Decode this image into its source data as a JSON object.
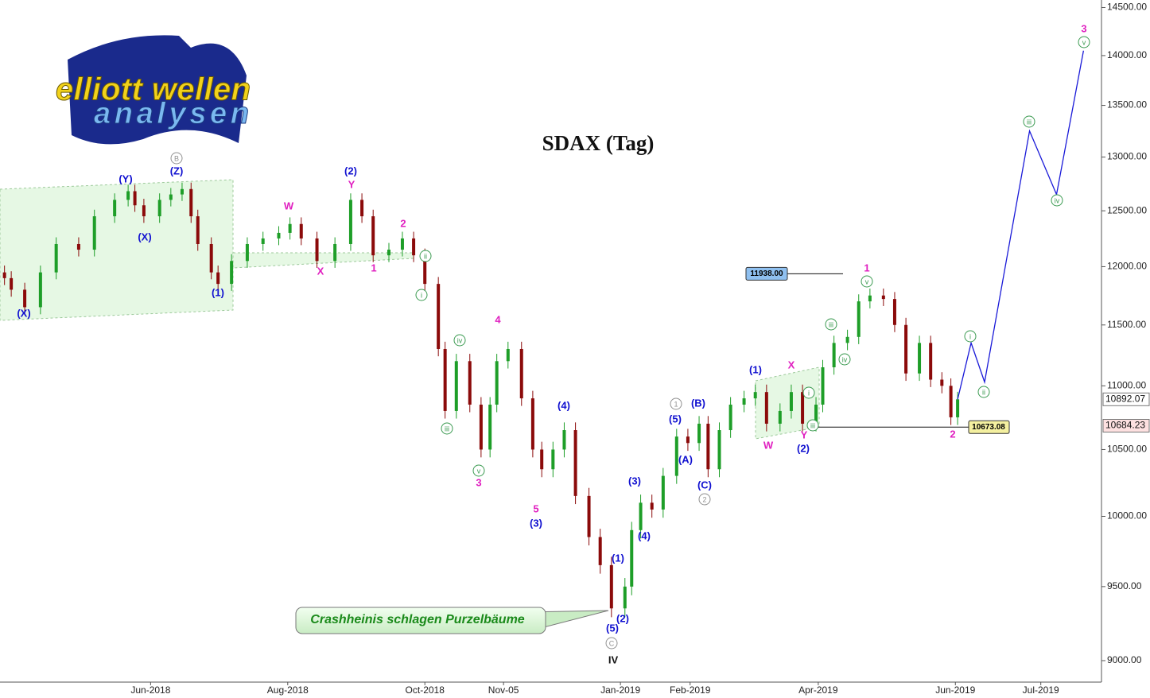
{
  "chart_data": {
    "type": "candlestick",
    "title": "SDAX (Tag)",
    "logo": {
      "line1": "elliott wellen",
      "line2": "analysen"
    },
    "callout": "Crashheinis schlagen Purzelbäume",
    "log_scale": true,
    "up_color": "#1e9e28",
    "down_color": "#8b0a0a",
    "xlim": [
      0,
      490
    ],
    "xticks": [
      {
        "value": 67,
        "label": "Jun-2018"
      },
      {
        "value": 128,
        "label": "Aug-2018"
      },
      {
        "value": 189,
        "label": "Oct-2018"
      },
      {
        "value": 224,
        "label": "Nov-05"
      },
      {
        "value": 276,
        "label": "Jan-2019"
      },
      {
        "value": 307,
        "label": "Feb-2019"
      },
      {
        "value": 364,
        "label": "Apr-2019"
      },
      {
        "value": 425,
        "label": "Jun-2019"
      },
      {
        "value": 463,
        "label": "Jul-2019"
      }
    ],
    "ylim": [
      8860,
      14580
    ],
    "yticks": [
      {
        "value": 9000,
        "label": "9000.00"
      },
      {
        "value": 9500,
        "label": "9500.00"
      },
      {
        "value": 10000,
        "label": "10000.00"
      },
      {
        "value": 10500,
        "label": "10500.00"
      },
      {
        "value": 11000,
        "label": "11000.00"
      },
      {
        "value": 11500,
        "label": "11500.00"
      },
      {
        "value": 12000,
        "label": "12000.00"
      },
      {
        "value": 12500,
        "label": "12500.00"
      },
      {
        "value": 13000,
        "label": "13000.00"
      },
      {
        "value": 13500,
        "label": "13500.00"
      },
      {
        "value": 14000,
        "label": "14000.00"
      },
      {
        "value": 14500,
        "label": "14500.00"
      }
    ],
    "x": [
      2,
      5,
      11,
      18,
      25,
      35,
      42,
      51,
      57,
      60,
      64,
      71,
      76,
      81,
      85,
      88,
      94,
      97,
      103,
      110,
      117,
      124,
      129,
      134,
      141,
      149,
      156,
      161,
      166,
      173,
      179,
      184,
      189,
      195,
      198,
      203,
      209,
      214,
      218,
      221,
      226,
      232,
      237,
      241,
      246,
      251,
      256,
      262,
      267,
      272,
      278,
      281,
      285,
      290,
      295,
      301,
      306,
      311,
      315,
      320,
      325,
      331,
      336,
      341,
      347,
      352,
      357,
      363,
      366,
      371,
      377,
      382,
      387,
      393,
      398,
      403,
      409,
      414,
      419,
      423,
      426
    ],
    "open": [
      11950,
      11900,
      11800,
      11650,
      11950,
      12200,
      12150,
      12450,
      12600,
      12680,
      12550,
      12450,
      12600,
      12650,
      12700,
      12450,
      12200,
      11950,
      11850,
      12050,
      12200,
      12250,
      12300,
      12380,
      12250,
      12050,
      12200,
      12600,
      12450,
      12100,
      12150,
      12250,
      12100,
      11850,
      11300,
      10800,
      11200,
      10850,
      10500,
      10850,
      11200,
      11300,
      10900,
      10500,
      10350,
      10500,
      10650,
      10150,
      9850,
      9650,
      9350,
      9500,
      9900,
      10100,
      10050,
      10300,
      10600,
      10550,
      10700,
      10350,
      10650,
      10850,
      10900,
      10950,
      10700,
      10800,
      10950,
      10700,
      10850,
      11150,
      11350,
      11400,
      11700,
      11750,
      11720,
      11500,
      11100,
      11350,
      11050,
      11000,
      10750
    ],
    "high": [
      12010,
      11960,
      11860,
      12010,
      12260,
      12260,
      12510,
      12660,
      12740,
      12740,
      12610,
      12660,
      12710,
      12760,
      12760,
      12510,
      12260,
      12010,
      12110,
      12260,
      12310,
      12360,
      12440,
      12440,
      12310,
      12260,
      12660,
      12660,
      12510,
      12210,
      12310,
      12310,
      12160,
      11910,
      11360,
      11260,
      11260,
      10910,
      10910,
      11260,
      11360,
      11360,
      10960,
      10560,
      10560,
      10710,
      10710,
      10210,
      9910,
      9710,
      9560,
      9960,
      10160,
      10160,
      10360,
      10660,
      10660,
      10760,
      10760,
      10710,
      10910,
      10960,
      11010,
      11010,
      10860,
      11010,
      11010,
      10910,
      11210,
      11410,
      11460,
      11760,
      11810,
      11810,
      11780,
      11560,
      11410,
      11410,
      11110,
      11060,
      10952
    ],
    "low": [
      11840,
      11740,
      11590,
      11590,
      11890,
      12090,
      12090,
      12390,
      12540,
      12490,
      12390,
      12390,
      12540,
      12590,
      12390,
      12140,
      11890,
      11790,
      11790,
      11990,
      12140,
      12190,
      12240,
      12190,
      11990,
      11990,
      12140,
      12390,
      12040,
      12040,
      12090,
      12040,
      11790,
      11240,
      10740,
      10740,
      10790,
      10440,
      10440,
      10790,
      11140,
      10840,
      10440,
      10290,
      10290,
      10440,
      10090,
      9790,
      9590,
      9290,
      9290,
      9440,
      9840,
      9990,
      9990,
      10240,
      10490,
      10490,
      10290,
      10290,
      10590,
      10790,
      10840,
      10640,
      10640,
      10740,
      10640,
      10640,
      10790,
      11090,
      11290,
      11340,
      11640,
      11660,
      11440,
      11040,
      11040,
      10990,
      10940,
      10690,
      10690
    ],
    "close": [
      11900,
      11800,
      11650,
      11950,
      12200,
      12150,
      12450,
      12600,
      12680,
      12550,
      12450,
      12600,
      12650,
      12700,
      12450,
      12200,
      11950,
      11850,
      12050,
      12200,
      12250,
      12300,
      12380,
      12250,
      12050,
      12200,
      12600,
      12450,
      12100,
      12150,
      12250,
      12100,
      11850,
      11300,
      10800,
      11200,
      10850,
      10500,
      10850,
      11200,
      11300,
      10900,
      10500,
      10350,
      10500,
      10650,
      10150,
      9850,
      9650,
      9350,
      9500,
      9900,
      10100,
      10050,
      10300,
      10600,
      10550,
      10700,
      10350,
      10650,
      10850,
      10900,
      10950,
      10700,
      10800,
      10950,
      10700,
      10850,
      11150,
      11350,
      11400,
      11700,
      11750,
      11720,
      11500,
      11100,
      11350,
      11050,
      11000,
      10750,
      10892
    ],
    "projection": {
      "color": "#1a1ad8",
      "x": [
        426,
        432,
        438,
        458,
        470,
        482
      ],
      "values": [
        10892,
        11350,
        11030,
        13250,
        12650,
        14050
      ]
    },
    "last_price": 10892.07,
    "prior_price": 10684.23,
    "high_tag": {
      "value": 11938,
      "label": "11938.00"
    },
    "low_tag": 10673.08,
    "annotations": [
      {
        "text": "(Y)",
        "color": "#1010d0",
        "circled": false
      },
      {
        "text": "(Z)",
        "color": "#1010d0",
        "circled": false
      },
      {
        "text": "(X)",
        "color": "#1010d0",
        "circled": false
      },
      {
        "text": "(X)",
        "color": "#1010d0",
        "circled": false
      },
      {
        "text": "(1)",
        "color": "#1010d0",
        "circled": false
      },
      {
        "text": "(2)",
        "color": "#1010d0",
        "circled": false
      },
      {
        "text": "(4)",
        "color": "#1010d0",
        "circled": false
      },
      {
        "text": "(3)",
        "color": "#1010d0",
        "circled": false
      },
      {
        "text": "(1)",
        "color": "#1010d0",
        "circled": false
      },
      {
        "text": "(2)",
        "color": "#1010d0",
        "circled": false
      },
      {
        "text": "(5)",
        "color": "#1010d0",
        "circled": false
      },
      {
        "text": "(3)",
        "color": "#1010d0",
        "circled": false
      },
      {
        "text": "(4)",
        "color": "#1010d0",
        "circled": false
      },
      {
        "text": "(5)",
        "color": "#1010d0",
        "circled": false
      },
      {
        "text": "(B)",
        "color": "#1010d0",
        "circled": false
      },
      {
        "text": "(A)",
        "color": "#1010d0",
        "circled": false
      },
      {
        "text": "(C)",
        "color": "#1010d0",
        "circled": false
      },
      {
        "text": "(1)",
        "color": "#1010d0",
        "circled": false
      },
      {
        "text": "(2)",
        "color": "#1010d0",
        "circled": false
      },
      {
        "text": "Y",
        "color": "#e020c0",
        "circled": false
      },
      {
        "text": "W",
        "color": "#e020c0",
        "circled": false
      },
      {
        "text": "X",
        "color": "#e020c0",
        "circled": false
      },
      {
        "text": "2",
        "color": "#e020c0",
        "circled": false
      },
      {
        "text": "1",
        "color": "#e020c0",
        "circled": false
      },
      {
        "text": "4",
        "color": "#e020c0",
        "circled": false
      },
      {
        "text": "3",
        "color": "#e020c0",
        "circled": false
      },
      {
        "text": "5",
        "color": "#e020c0",
        "circled": false
      },
      {
        "text": "X",
        "color": "#e020c0",
        "circled": false
      },
      {
        "text": "W",
        "color": "#e020c0",
        "circled": false
      },
      {
        "text": "Y",
        "color": "#e020c0",
        "circled": false
      },
      {
        "text": "1",
        "color": "#e020c0",
        "circled": false
      },
      {
        "text": "2",
        "color": "#e020c0",
        "circled": false
      },
      {
        "text": "3",
        "color": "#e020c0",
        "circled": false
      },
      {
        "text": "ii",
        "color": "#3a9a50",
        "circled": true
      },
      {
        "text": "i",
        "color": "#3a9a50",
        "circled": true
      },
      {
        "text": "iv",
        "color": "#3a9a50",
        "circled": true
      },
      {
        "text": "iii",
        "color": "#3a9a50",
        "circled": true
      },
      {
        "text": "v",
        "color": "#3a9a50",
        "circled": true
      },
      {
        "text": "iii",
        "color": "#3a9a50",
        "circled": true
      },
      {
        "text": "iv",
        "color": "#3a9a50",
        "circled": true
      },
      {
        "text": "v",
        "color": "#3a9a50",
        "circled": true
      },
      {
        "text": "i",
        "color": "#3a9a50",
        "circled": true
      },
      {
        "text": "iii",
        "color": "#3a9a50",
        "circled": true
      },
      {
        "text": "i",
        "color": "#3a9a50",
        "circled": true
      },
      {
        "text": "ii",
        "color": "#3a9a50",
        "circled": true
      },
      {
        "text": "iii",
        "color": "#3a9a50",
        "circled": true
      },
      {
        "text": "iv",
        "color": "#3a9a50",
        "circled": true
      },
      {
        "text": "v",
        "color": "#3a9a50",
        "circled": true
      },
      {
        "text": "B",
        "color": "#909090",
        "circled": true
      },
      {
        "text": "1",
        "color": "#909090",
        "circled": true
      },
      {
        "text": "2",
        "color": "#909090",
        "circled": true
      },
      {
        "text": "C",
        "color": "#909090",
        "circled": true
      },
      {
        "text": "IV",
        "color": "#111111",
        "circled": false
      }
    ]
  }
}
